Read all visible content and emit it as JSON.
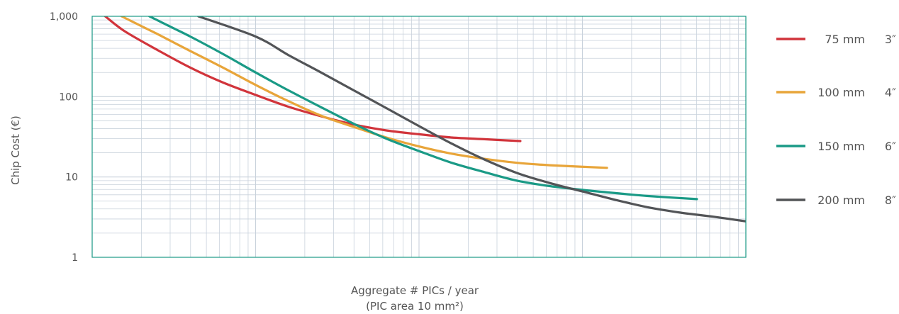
{
  "chart_data": {
    "type": "line",
    "ylabel": "Chip Cost (€)",
    "xlabel_line1": "Aggregate # PICs / year",
    "xlabel_line2": "(PIC area 10 mm²)",
    "y_scale": "log",
    "ylim": [
      1,
      1000
    ],
    "yticks": [
      {
        "value": 1,
        "label": "1"
      },
      {
        "value": 10,
        "label": "10"
      },
      {
        "value": 100,
        "label": "100"
      },
      {
        "value": 1000,
        "label": "1,000"
      }
    ],
    "x_scale": "log",
    "x_decades": 4,
    "x_tick_labels_shown": false,
    "grid": true,
    "legend_position": "right",
    "series": [
      {
        "name": "75 mm",
        "inch": "3″",
        "color": "#d1343b",
        "points": [
          [
            0.08,
            1000
          ],
          [
            0.2,
            650
          ],
          [
            0.4,
            380
          ],
          [
            0.6,
            230
          ],
          [
            0.8,
            150
          ],
          [
            1.0,
            105
          ],
          [
            1.2,
            75
          ],
          [
            1.4,
            57
          ],
          [
            1.6,
            45
          ],
          [
            1.8,
            38
          ],
          [
            2.0,
            34
          ],
          [
            2.2,
            31
          ],
          [
            2.4,
            29.5
          ],
          [
            2.62,
            28
          ]
        ]
      },
      {
        "name": "100 mm",
        "inch": "4″",
        "color": "#e8a53a",
        "points": [
          [
            0.18,
            1000
          ],
          [
            0.4,
            600
          ],
          [
            0.6,
            370
          ],
          [
            0.8,
            230
          ],
          [
            1.0,
            140
          ],
          [
            1.2,
            88
          ],
          [
            1.4,
            58
          ],
          [
            1.6,
            42
          ],
          [
            1.8,
            31
          ],
          [
            2.0,
            24
          ],
          [
            2.2,
            19.5
          ],
          [
            2.4,
            16.8
          ],
          [
            2.6,
            15
          ],
          [
            2.8,
            14
          ],
          [
            3.15,
            13
          ]
        ]
      },
      {
        "name": "150 mm",
        "inch": "6″",
        "color": "#1a9a86",
        "points": [
          [
            0.35,
            1000
          ],
          [
            0.6,
            560
          ],
          [
            0.8,
            340
          ],
          [
            1.0,
            200
          ],
          [
            1.2,
            120
          ],
          [
            1.4,
            74
          ],
          [
            1.6,
            46
          ],
          [
            1.8,
            30
          ],
          [
            2.0,
            21
          ],
          [
            2.2,
            15
          ],
          [
            2.4,
            11.5
          ],
          [
            2.6,
            9
          ],
          [
            2.8,
            7.7
          ],
          [
            3.0,
            6.9
          ],
          [
            3.2,
            6.3
          ],
          [
            3.4,
            5.8
          ],
          [
            3.7,
            5.3
          ]
        ]
      },
      {
        "name": "200 mm",
        "inch": "8″",
        "color": "#525457",
        "points": [
          [
            0.65,
            1000
          ],
          [
            1.0,
            560
          ],
          [
            1.2,
            330
          ],
          [
            1.4,
            200
          ],
          [
            1.6,
            120
          ],
          [
            1.8,
            72
          ],
          [
            2.0,
            43
          ],
          [
            2.2,
            26
          ],
          [
            2.4,
            16.5
          ],
          [
            2.6,
            11.2
          ],
          [
            2.8,
            8.4
          ],
          [
            3.0,
            6.6
          ],
          [
            3.2,
            5.2
          ],
          [
            3.4,
            4.2
          ],
          [
            3.6,
            3.6
          ],
          [
            3.8,
            3.2
          ],
          [
            4.0,
            2.8
          ]
        ]
      }
    ],
    "plot_style": {
      "border_color": "#1a9a86",
      "grid_color": "#c9d2dc"
    }
  }
}
